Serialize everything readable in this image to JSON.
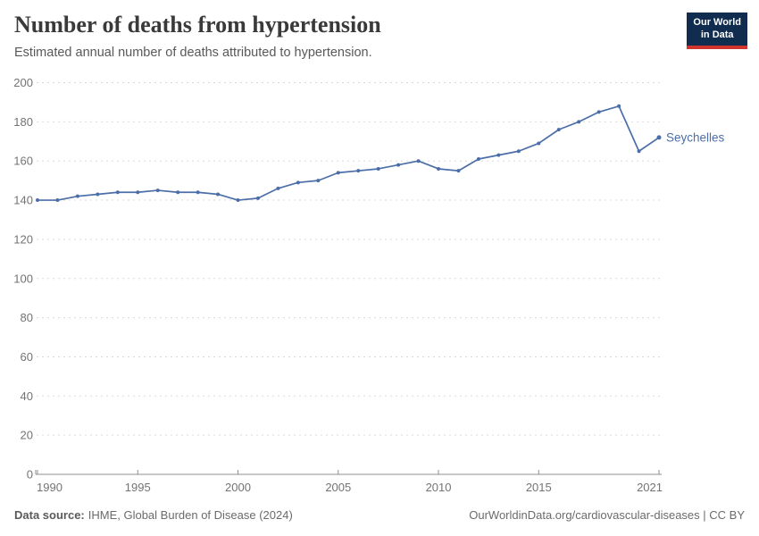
{
  "header": {
    "title": "Number of deaths from hypertension",
    "subtitle": "Estimated annual number of deaths attributed to hypertension.",
    "logo": {
      "line1": "Our World",
      "line2": "in Data"
    }
  },
  "chart_data": {
    "type": "line",
    "title": "Number of deaths from hypertension",
    "entity_label": "Seychelles",
    "x": [
      1990,
      1991,
      1992,
      1993,
      1994,
      1995,
      1996,
      1997,
      1998,
      1999,
      2000,
      2001,
      2002,
      2003,
      2004,
      2005,
      2006,
      2007,
      2008,
      2009,
      2010,
      2011,
      2012,
      2013,
      2014,
      2015,
      2016,
      2017,
      2018,
      2019,
      2020,
      2021
    ],
    "series": [
      {
        "name": "Seychelles",
        "color": "#4c6ea8",
        "values": [
          140,
          140,
          142,
          143,
          144,
          144,
          145,
          144,
          144,
          143,
          140,
          141,
          146,
          149,
          150,
          154,
          155,
          156,
          158,
          160,
          156,
          155,
          161,
          163,
          165,
          169,
          176,
          180,
          185,
          188,
          165,
          172
        ]
      }
    ],
    "x_ticks": [
      1990,
      1995,
      2000,
      2005,
      2010,
      2015,
      2021
    ],
    "y_ticks": [
      0,
      20,
      40,
      60,
      80,
      100,
      120,
      140,
      160,
      180,
      200
    ],
    "xlim": [
      1990,
      2021
    ],
    "ylim": [
      0,
      200
    ],
    "grid": "horizontal-dashed",
    "legend_position": "end-of-line"
  },
  "footer": {
    "source_label": "Data source:",
    "source_text": "IHME, Global Burden of Disease (2024)",
    "attribution": "OurWorldinData.org/cardiovascular-diseases | CC BY"
  },
  "colors": {
    "line": "#4c6ea8",
    "grid": "#dadada",
    "axis": "#8f8f8f",
    "tick_label": "#737373",
    "title": "#3a3a3a",
    "subtitle": "#595959",
    "footer": "#6b6b6b",
    "logo_bg": "#102d4f",
    "logo_stripe": "#d0342c"
  }
}
